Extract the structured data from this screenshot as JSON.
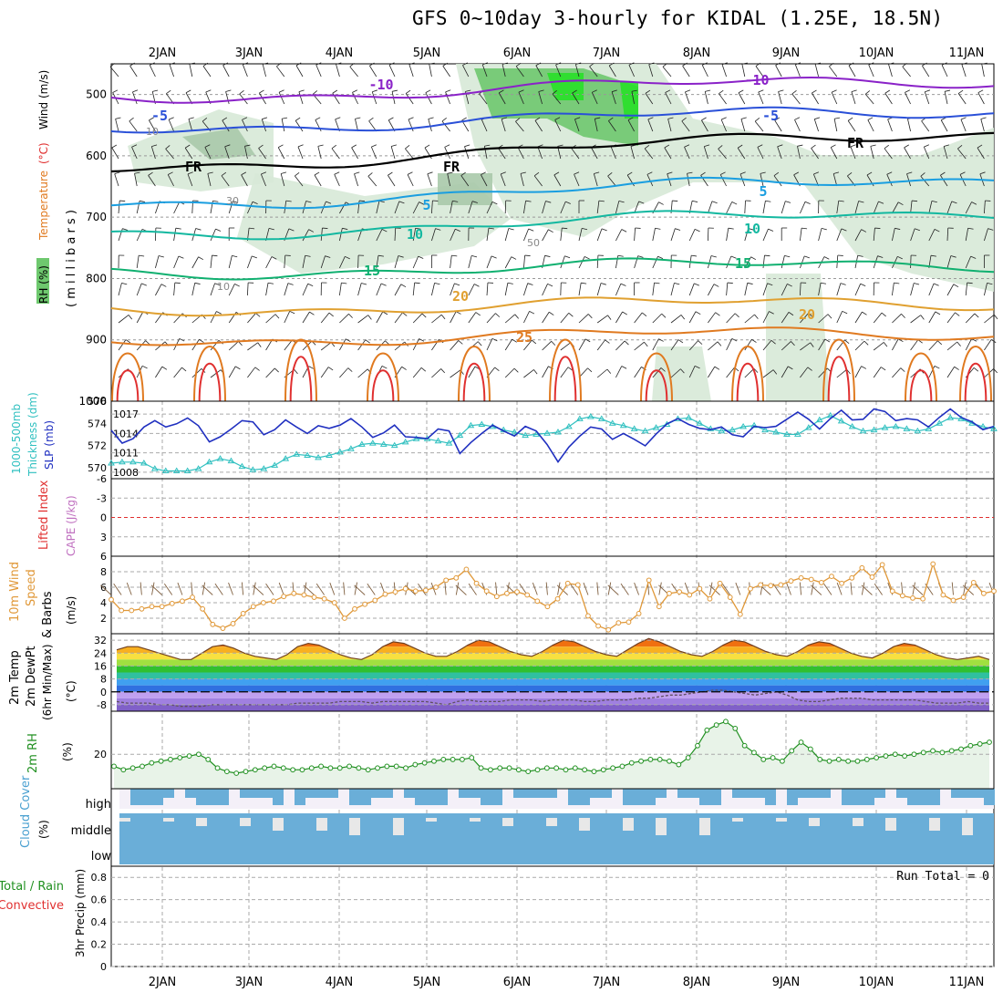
{
  "title": "GFS 0~10day 3-hourly for KIDAL (1.25E, 18.5N)",
  "date_labels": [
    "2JAN",
    "3JAN",
    "4JAN",
    "5JAN",
    "6JAN",
    "7JAN",
    "8JAN",
    "9JAN",
    "10JAN",
    "11JAN"
  ],
  "colors": {
    "rh_fill": "#d7e9d7",
    "rh_fill_dark": "#a9c9aa",
    "rh_green": "#6ec86e",
    "rh_bright": "#28e028",
    "temp_purple": "#8a22c8",
    "temp_blue": "#2a50d8",
    "temp_cyan": "#1a9ee0",
    "temp_teal": "#13b8a0",
    "temp_green": "#10b070",
    "temp_orange": "#e0a030",
    "temp_darkorange": "#e07a20",
    "temp_red": "#e03030",
    "slp_line": "#2030c0",
    "thick_line": "#30c0c0",
    "wind_line": "#e09838",
    "barb": "#806040",
    "rh2m_line": "#209020",
    "rh2m_fill": "#e8f3e8",
    "cloud": "#6aaed8",
    "cloud_gap": "#e8e8e8",
    "cloud_high_bg": "#f4f0f8",
    "grid": "#aaaaaa",
    "dewpt": "#605060"
  },
  "chart_data": [
    {
      "name": "upper-air",
      "type": "heatmap",
      "ylabel_left": [
        "RH (%)",
        "Temperature",
        "(°C)",
        "Wind (m/s)"
      ],
      "ylabel_unit": "( m i l l i b a r s )",
      "yticks": [
        500,
        600,
        700,
        800,
        900,
        1000
      ],
      "ylim": [
        450,
        1000
      ],
      "isotherms": [
        {
          "label": "-10",
          "level": 505,
          "color": "purple"
        },
        {
          "label": "-5",
          "level": 555,
          "color": "blue"
        },
        {
          "label": "FR",
          "level": 620,
          "color": "black"
        },
        {
          "label": "5",
          "level": 680,
          "color": "cyan"
        },
        {
          "label": "10",
          "level": 728,
          "color": "teal"
        },
        {
          "label": "15",
          "level": 790,
          "color": "green"
        },
        {
          "label": "20",
          "level": 850,
          "color": "orange"
        },
        {
          "label": "25",
          "level": 900,
          "color": "darkorange"
        }
      ],
      "rh_labels": [
        "10",
        "30",
        "50",
        "10"
      ]
    },
    {
      "name": "thickness-slp",
      "type": "line",
      "ylabel": [
        "1000-500mb",
        "Thickness (dm)"
      ],
      "ylabel2": "SLP (mb)",
      "yticks_left": [
        570,
        572,
        574,
        576
      ],
      "yticks_right": [
        1008,
        1011,
        1014,
        1017
      ],
      "ylim_left": [
        569,
        576
      ],
      "ylim_right": [
        1007,
        1019
      ],
      "series": [
        {
          "name": "Thickness",
          "values": [
            570.4,
            570.5,
            570.5,
            570.4,
            569.9,
            569.7,
            569.7,
            569.7,
            569.9,
            570.5,
            570.8,
            570.6,
            570.1,
            569.8,
            569.9,
            570.2,
            570.8,
            571.2,
            571.1,
            570.9,
            571.1,
            571.4,
            571.7,
            572.1,
            572.2,
            572.1,
            572.0,
            572.3,
            572.6,
            572.6,
            572.4,
            572.2,
            572.9,
            573.8,
            573.9,
            573.7,
            573.4,
            573.2,
            572.9,
            573.0,
            573.1,
            573.2,
            573.7,
            574.4,
            574.6,
            574.4,
            574.0,
            573.8,
            573.5,
            573.3,
            573.6,
            573.9,
            574.4,
            574.5,
            574.0,
            573.5,
            573.3,
            573.4,
            573.7,
            573.8,
            573.4,
            573.2,
            573.0,
            573.0,
            573.6,
            574.3,
            574.7,
            574.2,
            573.7,
            573.3,
            573.4,
            573.6,
            573.7,
            573.5,
            573.3,
            573.5,
            574.0,
            574.5,
            574.4,
            574.0,
            573.7,
            573.5
          ]
        },
        {
          "name": "SLP",
          "values": [
            1014.5,
            1012.5,
            1013.2,
            1015.0,
            1016.0,
            1015.0,
            1015.5,
            1016.4,
            1015.2,
            1012.7,
            1013.5,
            1014.7,
            1016.0,
            1015.8,
            1013.8,
            1014.6,
            1016.1,
            1015.0,
            1014.0,
            1015.2,
            1014.8,
            1015.3,
            1016.3,
            1015.0,
            1013.4,
            1014.1,
            1015.3,
            1013.5,
            1013.4,
            1013.2,
            1014.7,
            1014.4,
            1010.9,
            1012.6,
            1014.0,
            1015.3,
            1014.4,
            1013.6,
            1015.1,
            1014.4,
            1012.3,
            1009.6,
            1011.9,
            1013.6,
            1015.0,
            1014.7,
            1013.1,
            1014.0,
            1013.1,
            1012.1,
            1013.9,
            1015.5,
            1016.3,
            1015.4,
            1014.8,
            1014.6,
            1015.0,
            1013.8,
            1013.5,
            1015.1,
            1014.9,
            1015.1,
            1016.2,
            1017.3,
            1016.2,
            1014.7,
            1016.3,
            1017.6,
            1016.1,
            1016.2,
            1017.8,
            1017.4,
            1016.0,
            1016.3,
            1016.1,
            1015.0,
            1016.5,
            1017.8,
            1016.5,
            1015.8,
            1014.6,
            1015.1
          ]
        }
      ]
    },
    {
      "name": "stability",
      "type": "line",
      "ylabel": [
        "Lifted Index"
      ],
      "ylabel2": "CAPE (J/kg)",
      "yticks": [
        -6,
        -3,
        0,
        3,
        6
      ],
      "ytick_labels": [
        "-6",
        "-3",
        "0",
        "3",
        "6"
      ],
      "ylim": [
        -6,
        6
      ],
      "series": [
        {
          "name": "Lifted Index",
          "values": []
        }
      ]
    },
    {
      "name": "10m-wind",
      "type": "line",
      "ylabel": [
        "10m Wind",
        "Speed",
        "& Barbs"
      ],
      "yunit": "(m/s)",
      "yticks": [
        2,
        4,
        6,
        8
      ],
      "ylim": [
        0,
        10
      ],
      "series": [
        {
          "name": "Wind Speed",
          "values": [
            4.4,
            3.0,
            3.0,
            3.2,
            3.5,
            3.5,
            3.9,
            4.2,
            4.7,
            3.2,
            1.2,
            0.7,
            1.3,
            2.6,
            3.5,
            4.0,
            4.2,
            4.8,
            5.2,
            5.0,
            4.7,
            4.5,
            4.0,
            2.0,
            3.2,
            3.8,
            4.3,
            5.1,
            5.4,
            5.8,
            5.5,
            5.6,
            6.0,
            6.9,
            7.2,
            8.3,
            6.5,
            5.5,
            4.8,
            5.2,
            5.4,
            5.0,
            4.2,
            3.5,
            4.5,
            6.5,
            6.3,
            2.3,
            1.0,
            0.5,
            1.4,
            1.5,
            2.6,
            6.9,
            3.5,
            5.2,
            5.4,
            5.0,
            5.8,
            4.5,
            6.5,
            4.7,
            2.5,
            5.8,
            6.3,
            6.2,
            6.3,
            6.8,
            7.2,
            7.0,
            6.6,
            7.4,
            6.5,
            7.2,
            8.5,
            7.3,
            8.9,
            5.5,
            4.9,
            4.6,
            4.5,
            9.0,
            5.0,
            4.3,
            4.7,
            6.6,
            5.2,
            5.5
          ]
        }
      ]
    },
    {
      "name": "2m-temp",
      "type": "area",
      "ylabel": [
        "2m Temp",
        "2m DewPt",
        "(6hr Min/Max)"
      ],
      "yunit": "(°C)",
      "yticks": [
        -8,
        0,
        8,
        16,
        24,
        32
      ],
      "ylim": [
        -12,
        36
      ],
      "series": [
        {
          "name": "2m Temp",
          "values": [
            26,
            28,
            28,
            26,
            24,
            22,
            20,
            20,
            24,
            28,
            29,
            27,
            24,
            22,
            21,
            20,
            23,
            28,
            30,
            29,
            26,
            23,
            21,
            20,
            23,
            28,
            31,
            30,
            27,
            24,
            22,
            22,
            25,
            29,
            32,
            31,
            28,
            25,
            23,
            22,
            25,
            29,
            32,
            31,
            28,
            25,
            23,
            22,
            26,
            30,
            33,
            31,
            28,
            25,
            23,
            22,
            25,
            29,
            32,
            31,
            28,
            25,
            23,
            22,
            25,
            29,
            31,
            30,
            27,
            24,
            22,
            21,
            24,
            28,
            30,
            29,
            26,
            23,
            21,
            20,
            21,
            22,
            20
          ]
        },
        {
          "name": "2m DewPt",
          "values": [
            -6,
            -7,
            -7,
            -7,
            -8,
            -8,
            -9,
            -9,
            -9,
            -8,
            -8,
            -8,
            -8,
            -8,
            -8,
            -8,
            -8,
            -7,
            -7,
            -7,
            -7,
            -6,
            -6,
            -6,
            -7,
            -6,
            -6,
            -6,
            -6,
            -6,
            -7,
            -8,
            -6,
            -5,
            -6,
            -6,
            -6,
            -5,
            -5,
            -5,
            -6,
            -5,
            -5,
            -5,
            -6,
            -6,
            -5,
            -5,
            -5,
            -4,
            -4,
            -3,
            -2,
            -2,
            -1,
            0,
            1,
            1,
            0,
            -1,
            -2,
            -1,
            0,
            -2,
            -5,
            -6,
            -6,
            -5,
            -4,
            -4,
            -4,
            -5,
            -5,
            -5,
            -5,
            -5,
            -6,
            -7,
            -7,
            -7,
            -6,
            -7,
            -7
          ]
        }
      ]
    },
    {
      "name": "2m-rh",
      "type": "area",
      "ylabel": [
        "2m RH"
      ],
      "yunit": "(%)",
      "yticks": [
        20
      ],
      "ylim": [
        0,
        45
      ],
      "series": [
        {
          "name": "2m RH",
          "values": [
            13,
            11,
            12,
            13,
            15,
            16,
            17,
            18,
            19,
            20,
            17,
            12,
            10,
            9,
            10,
            11,
            12,
            13,
            12,
            11,
            11,
            12,
            13,
            12,
            12,
            13,
            12,
            11,
            12,
            13,
            13,
            12,
            14,
            15,
            16,
            17,
            17,
            17,
            18,
            12,
            11,
            12,
            12,
            11,
            10,
            11,
            12,
            12,
            11,
            12,
            11,
            10,
            11,
            12,
            13,
            15,
            16,
            17,
            17,
            16,
            14,
            18,
            25,
            34,
            37,
            39,
            35,
            25,
            21,
            17,
            18,
            16,
            22,
            27,
            23,
            17,
            16,
            17,
            16,
            16,
            17,
            18,
            19,
            20,
            19,
            20,
            21,
            22,
            21,
            22,
            23,
            25,
            26,
            27
          ]
        }
      ]
    },
    {
      "name": "cloud-cover",
      "type": "area",
      "ylabel": [
        "Cloud Cover"
      ],
      "yunit": "(%)",
      "ytick_labels": [
        "high",
        "middle",
        "low"
      ]
    },
    {
      "name": "precip",
      "type": "bar",
      "ylabel": [
        "3hr Precip (mm)"
      ],
      "ylabel_extra": [
        "Total / Rain",
        "Convective"
      ],
      "yticks": [
        0,
        0.2,
        0.4,
        0.6,
        0.8
      ],
      "ylim": [
        0,
        0.9
      ],
      "run_total": "Run Total = 0",
      "values": []
    }
  ]
}
